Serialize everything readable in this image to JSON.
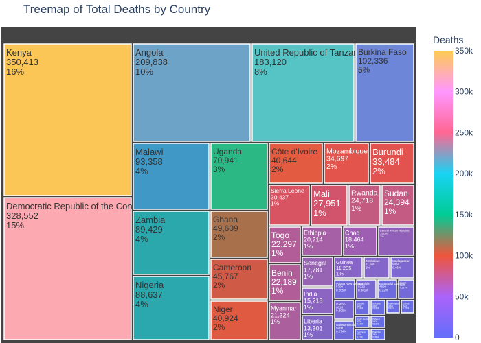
{
  "chart_data": {
    "type": "treemap",
    "title": "Treemap of Total Deaths by Country",
    "colorbar": {
      "title": "Deaths",
      "range": [
        0,
        350000
      ],
      "ticks": [
        {
          "value": 350000,
          "label": "350k"
        },
        {
          "value": 300000,
          "label": "300k"
        },
        {
          "value": 250000,
          "label": "250k"
        },
        {
          "value": 200000,
          "label": "200k"
        },
        {
          "value": 150000,
          "label": "150k"
        },
        {
          "value": 100000,
          "label": "100k"
        },
        {
          "value": 50000,
          "label": "50k"
        },
        {
          "value": 0,
          "label": "0"
        }
      ],
      "colorscale": [
        "#636efa",
        "#ab63fa",
        "#ef553b",
        "#00cc96",
        "#19d3f3",
        "#ff6692",
        "#ff97ff",
        "#fecb52"
      ]
    },
    "items": [
      {
        "label": "Kenya",
        "value": 350413,
        "value_text": "350,413",
        "percent": "16%"
      },
      {
        "label": "Democratic Republic of the Congo",
        "value": 328552,
        "value_text": "328,552",
        "percent": "15%"
      },
      {
        "label": "Angola",
        "value": 209838,
        "value_text": "209,838",
        "percent": "10%"
      },
      {
        "label": "United Republic of Tanzania",
        "value": 183120,
        "value_text": "183,120",
        "percent": "8%"
      },
      {
        "label": "Burkina Faso",
        "value": 102336,
        "value_text": "102,336",
        "percent": "5%"
      },
      {
        "label": "Malawi",
        "value": 93358,
        "value_text": "93,358",
        "percent": "4%"
      },
      {
        "label": "Zambia",
        "value": 89429,
        "value_text": "89,429",
        "percent": "4%"
      },
      {
        "label": "Nigeria",
        "value": 88637,
        "value_text": "88,637",
        "percent": "4%"
      },
      {
        "label": "Uganda",
        "value": 70941,
        "value_text": "70,941",
        "percent": "3%"
      },
      {
        "label": "Ghana",
        "value": 49609,
        "value_text": "49,609",
        "percent": "2%"
      },
      {
        "label": "Cameroon",
        "value": 45767,
        "value_text": "45,767",
        "percent": "2%"
      },
      {
        "label": "Niger",
        "value": 40924,
        "value_text": "40,924",
        "percent": "2%"
      },
      {
        "label": "Côte d'Ivoire",
        "value": 40644,
        "value_text": "40,644",
        "percent": "2%"
      },
      {
        "label": "Mozambique",
        "value": 34697,
        "value_text": "34,697",
        "percent": "2%"
      },
      {
        "label": "Burundi",
        "value": 33484,
        "value_text": "33,484",
        "percent": "2%"
      },
      {
        "label": "Sierra Leone",
        "value": 30437,
        "value_text": "30,437",
        "percent": "1%"
      },
      {
        "label": "Mali",
        "value": 27951,
        "value_text": "27,951",
        "percent": "1%"
      },
      {
        "label": "Rwanda",
        "value": 24718,
        "value_text": "24,718",
        "percent": "1%"
      },
      {
        "label": "Sudan",
        "value": 24394,
        "value_text": "24,394",
        "percent": "1%"
      },
      {
        "label": "Togo",
        "value": 22297,
        "value_text": "22,297",
        "percent": "1%"
      },
      {
        "label": "Benin",
        "value": 22189,
        "value_text": "22,189",
        "percent": "1%"
      },
      {
        "label": "Myanmar",
        "value": 21324,
        "value_text": "21,324",
        "percent": "1%"
      },
      {
        "label": "Ethiopia",
        "value": 20714,
        "value_text": "20,714",
        "percent": "1%"
      },
      {
        "label": "Chad",
        "value": 18464,
        "value_text": "18,464",
        "percent": "1%"
      },
      {
        "label": "Senegal",
        "value": 17781,
        "value_text": "17,781",
        "percent": "1%"
      },
      {
        "label": "India",
        "value": 15218,
        "value_text": "15,218",
        "percent": "1%"
      },
      {
        "label": "Liberia",
        "value": 13301,
        "value_text": "13,301",
        "percent": "1%"
      },
      {
        "label": "Central African Republic",
        "value": 13000,
        "value_text": "13,000",
        "percent": "1%"
      },
      {
        "label": "Guinea",
        "value": 11205,
        "value_text": "11,205",
        "percent": "1%"
      },
      {
        "label": "Zimbabwe",
        "value": 11049,
        "value_text": "11,049",
        "percent": "1%"
      },
      {
        "label": "Madagascar",
        "value": 9834,
        "value_text": "9834",
        "percent": "0.46%"
      },
      {
        "label": "Namibia",
        "value": 8212,
        "value_text": "8212",
        "percent": "0.381%"
      },
      {
        "label": "Gabon",
        "value": 8618,
        "value_text": "8618",
        "percent": "0.399%"
      },
      {
        "label": "Congo",
        "value": 6400,
        "value_text": "6400",
        "percent": "0.297%"
      },
      {
        "label": "Guinea-Bissau",
        "value": 5900,
        "value_text": "5900",
        "percent": "0.274%"
      },
      {
        "label": "Papua New Guinea",
        "value": 5700,
        "value_text": "5700",
        "percent": "0.265%"
      },
      {
        "label": "Equatorial Guinea",
        "value": 4800,
        "value_text": "4800",
        "percent": "0.22%"
      },
      {
        "label": "Gambia",
        "value": 4200,
        "value_text": "4200",
        "percent": "0.19%"
      },
      {
        "label": "Somalia",
        "value": 3800,
        "value_text": "3800",
        "percent": "0.18%"
      },
      {
        "label": "Mauritania",
        "value": 3500,
        "value_text": "3500",
        "percent": "0.16%"
      },
      {
        "label": "Eritrea",
        "value": 3200,
        "value_text": "3200",
        "percent": "0.15%"
      },
      {
        "label": "South Sudan",
        "value": 3000,
        "value_text": "3000",
        "percent": "0.14%"
      },
      {
        "label": "Djibouti",
        "value": 2600,
        "value_text": "2600",
        "percent": "0.12%"
      },
      {
        "label": "Comoros",
        "value": 2300,
        "value_text": "2300",
        "percent": "0.11%"
      },
      {
        "label": "Pakistan",
        "value": 2000,
        "value_text": "2000",
        "percent": "0.09%"
      }
    ]
  }
}
